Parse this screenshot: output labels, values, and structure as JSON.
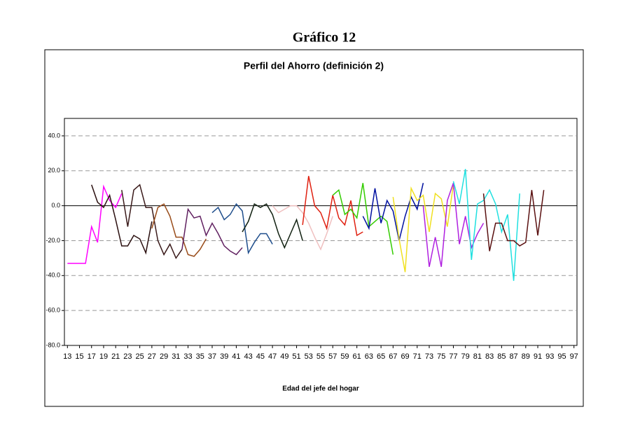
{
  "heading": "Gráfico 12",
  "chart_data": {
    "type": "line",
    "title": "Perfil del Ahorro (definición 2)",
    "x_label": "Edad del jefe del hogar",
    "xlim": [
      12.5,
      97.5
    ],
    "xticks": [
      13,
      15,
      17,
      19,
      21,
      23,
      25,
      27,
      29,
      31,
      33,
      35,
      37,
      39,
      41,
      43,
      45,
      47,
      49,
      51,
      53,
      55,
      57,
      59,
      61,
      63,
      65,
      67,
      69,
      71,
      73,
      75,
      77,
      79,
      81,
      83,
      85,
      87,
      89,
      91,
      93,
      95,
      97
    ],
    "ylim": [
      -80,
      50
    ],
    "yticks": [
      {
        "value": -80,
        "label": "-80.0"
      },
      {
        "value": -60,
        "label": "-60.0"
      },
      {
        "value": -40,
        "label": "-40.0"
      },
      {
        "value": -20,
        "label": "-20.0"
      },
      {
        "value": 0,
        "label": "0.0"
      },
      {
        "value": 20,
        "label": "20.0"
      },
      {
        "value": 40,
        "label": "40.0"
      }
    ],
    "grid": true,
    "series": [
      {
        "color": "#ff00ff",
        "x": [
          13,
          14,
          15,
          16,
          17,
          18,
          19,
          20,
          21,
          22
        ],
        "values": [
          -33,
          -33,
          -33,
          -33,
          -12,
          -21,
          11,
          3,
          -1,
          7
        ]
      },
      {
        "color": "#2b1010",
        "x": [
          17,
          18,
          19,
          20,
          21,
          22,
          23,
          24,
          25,
          26,
          27
        ],
        "values": [
          12,
          2,
          -1,
          6,
          -8,
          -23,
          -23,
          -17,
          -19,
          -27,
          -9
        ]
      },
      {
        "color": "#3a1a1a",
        "x": [
          22,
          23,
          24,
          25,
          26,
          27,
          28,
          29,
          30,
          31,
          32
        ],
        "values": [
          9,
          -12,
          9,
          12,
          -1,
          -1,
          -20,
          -28,
          -22,
          -30,
          -25
        ]
      },
      {
        "color": "#994c1a",
        "x": [
          27,
          28,
          29,
          30,
          31,
          32,
          33,
          34,
          35,
          36
        ],
        "values": [
          -13,
          -1,
          1,
          -6,
          -18,
          -18,
          -28,
          -29,
          -25,
          -19
        ]
      },
      {
        "color": "#602060",
        "x": [
          32,
          33,
          34,
          35,
          36,
          37,
          38,
          39,
          40,
          41,
          42
        ],
        "values": [
          -25,
          -2,
          -7,
          -6,
          -17,
          -10,
          -16,
          -23,
          -26,
          -28,
          -24
        ]
      },
      {
        "color": "#1f4e8c",
        "x": [
          37,
          38,
          39,
          40,
          41,
          42,
          43,
          44,
          45,
          46,
          47
        ],
        "values": [
          -4,
          -1,
          -8,
          -5,
          1,
          -3,
          -27,
          -21,
          -16,
          -16,
          -22
        ]
      },
      {
        "color": "#102010",
        "x": [
          42,
          43,
          44,
          45,
          46,
          47,
          48,
          49,
          50,
          51,
          52
        ],
        "values": [
          -15,
          -9,
          1,
          -1,
          1,
          -5,
          -16,
          -24,
          -16,
          -8,
          -20
        ]
      },
      {
        "color": "#f0c0c0",
        "x": [
          47,
          48,
          49,
          50,
          51,
          52,
          53,
          54,
          55,
          56,
          57
        ],
        "values": [
          0,
          -4,
          -2,
          0,
          0,
          -4,
          -10,
          -18,
          -25,
          -16,
          -6
        ]
      },
      {
        "color": "#e02010",
        "x": [
          52,
          53,
          54,
          55,
          56,
          57,
          58,
          59,
          60,
          61,
          62
        ],
        "values": [
          -11,
          17,
          0,
          -4,
          -13,
          6,
          -7,
          -11,
          3,
          -17,
          -15
        ]
      },
      {
        "color": "#33cc00",
        "x": [
          57,
          58,
          59,
          60,
          61,
          62,
          63,
          64,
          65,
          66,
          67
        ],
        "values": [
          6,
          9,
          -5,
          -2,
          -7,
          13,
          -12,
          -9,
          -6,
          -9,
          -28
        ]
      },
      {
        "color": "#0010a0",
        "x": [
          62,
          63,
          64,
          65,
          66,
          67,
          68,
          69,
          70,
          71,
          72
        ],
        "values": [
          -6,
          -13,
          10,
          -10,
          3,
          -3,
          -20,
          -6,
          5,
          -2,
          13
        ]
      },
      {
        "color": "#f0e020",
        "x": [
          67,
          68,
          69,
          70,
          71,
          72,
          73,
          74,
          75,
          76,
          77
        ],
        "values": [
          5,
          -19,
          -38,
          10,
          3,
          6,
          -15,
          7,
          4,
          -12,
          12
        ]
      },
      {
        "color": "#b020e0",
        "x": [
          72,
          73,
          74,
          75,
          76,
          77,
          78,
          79,
          80,
          81,
          82
        ],
        "values": [
          0,
          -35,
          -18,
          -35,
          3,
          13,
          -22,
          -6,
          -24,
          -16,
          -10
        ]
      },
      {
        "color": "#20e0e0",
        "x": [
          77,
          78,
          79,
          80,
          81,
          82,
          83,
          84,
          85,
          86,
          87,
          88
        ],
        "values": [
          14,
          1,
          21,
          -31,
          1,
          3,
          9,
          1,
          -15,
          -5,
          -43,
          7
        ]
      },
      {
        "color": "#5a1010",
        "x": [
          82,
          83,
          84,
          85,
          86,
          87,
          88,
          89,
          90,
          91,
          92
        ],
        "values": [
          7,
          -26,
          -10,
          -10,
          -20,
          -20,
          -23,
          -21,
          9,
          -17,
          9
        ]
      }
    ]
  }
}
